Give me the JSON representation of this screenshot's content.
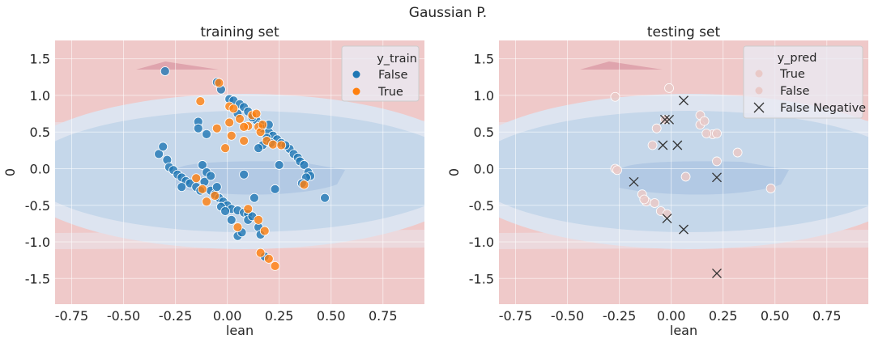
{
  "figure": {
    "suptitle": "Gaussian P."
  },
  "colors": {
    "axes_bg": "#eaeaf2",
    "class_false": "#1f77b4",
    "class_true": "#ff7f0e",
    "pred_point": "#e9c9c7",
    "false_negative": "#333333",
    "region_red_light": "#ecd9dd",
    "region_red": "#efc9c9",
    "region_blue_light": "#dde4f0",
    "region_blue": "#c5d7ea",
    "region_blue_dark": "#b2c9e4",
    "region_red_dark": "#dfa4ad",
    "grid": "#ffffff"
  },
  "chart_data": [
    {
      "type": "scatter",
      "title": "training set",
      "xlabel": "lean",
      "ylabel": "0",
      "xlim": [
        -0.83,
        0.95
      ],
      "ylim": [
        -1.85,
        1.75
      ],
      "xticks": [
        "-0.75",
        "-0.50",
        "-0.25",
        "0.00",
        "0.25",
        "0.50",
        "0.75"
      ],
      "yticks": [
        "-1.5",
        "-1.0",
        "-0.5",
        "0.0",
        "0.5",
        "1.0",
        "1.5"
      ],
      "grid": true,
      "background": "decision-regions",
      "legend": {
        "title": "y_train",
        "placement": "top-right",
        "entries": [
          {
            "label": "False",
            "marker": "circle",
            "color": "#1f77b4"
          },
          {
            "label": "True",
            "marker": "circle",
            "color": "#ff7f0e"
          }
        ]
      },
      "series": [
        {
          "name": "False",
          "color": "#1f77b4",
          "marker": "circle",
          "points": [
            [
              -0.3,
              1.33
            ],
            [
              -0.05,
              1.18
            ],
            [
              -0.03,
              1.08
            ],
            [
              0.01,
              0.95
            ],
            [
              0.03,
              0.93
            ],
            [
              0.06,
              0.88
            ],
            [
              0.08,
              0.84
            ],
            [
              0.1,
              0.78
            ],
            [
              0.12,
              0.72
            ],
            [
              0.14,
              0.66
            ],
            [
              0.16,
              0.6
            ],
            [
              0.17,
              0.55
            ],
            [
              0.2,
              0.5
            ],
            [
              0.22,
              0.45
            ],
            [
              0.24,
              0.4
            ],
            [
              0.26,
              0.35
            ],
            [
              0.19,
              0.42
            ],
            [
              0.17,
              0.32
            ],
            [
              0.15,
              0.28
            ],
            [
              0.21,
              0.35
            ],
            [
              0.3,
              0.27
            ],
            [
              0.32,
              0.2
            ],
            [
              0.34,
              0.15
            ],
            [
              0.35,
              0.1
            ],
            [
              0.37,
              0.05
            ],
            [
              0.39,
              -0.05
            ],
            [
              0.4,
              -0.1
            ],
            [
              0.38,
              -0.12
            ],
            [
              0.36,
              -0.2
            ],
            [
              0.47,
              -0.4
            ],
            [
              0.25,
              0.05
            ],
            [
              0.23,
              -0.28
            ],
            [
              0.08,
              -0.08
            ],
            [
              -0.33,
              0.2
            ],
            [
              -0.31,
              0.3
            ],
            [
              -0.29,
              0.12
            ],
            [
              -0.28,
              0.02
            ],
            [
              -0.26,
              -0.02
            ],
            [
              -0.24,
              -0.08
            ],
            [
              -0.22,
              -0.12
            ],
            [
              -0.2,
              -0.17
            ],
            [
              -0.18,
              -0.2
            ],
            [
              -0.15,
              -0.25
            ],
            [
              -0.13,
              -0.3
            ],
            [
              -0.11,
              -0.18
            ],
            [
              -0.22,
              -0.25
            ],
            [
              -0.12,
              0.05
            ],
            [
              -0.1,
              -0.05
            ],
            [
              -0.08,
              -0.1
            ],
            [
              -0.14,
              0.64
            ],
            [
              -0.14,
              0.55
            ],
            [
              -0.1,
              0.47
            ],
            [
              -0.08,
              -0.3
            ],
            [
              -0.06,
              -0.35
            ],
            [
              -0.04,
              -0.4
            ],
            [
              -0.02,
              -0.45
            ],
            [
              0.0,
              -0.5
            ],
            [
              -0.03,
              -0.52
            ],
            [
              0.02,
              -0.55
            ],
            [
              0.05,
              -0.57
            ],
            [
              0.08,
              -0.6
            ],
            [
              0.1,
              -0.62
            ],
            [
              -0.01,
              -0.58
            ],
            [
              -0.05,
              -0.25
            ],
            [
              0.02,
              -0.7
            ],
            [
              0.05,
              -0.92
            ],
            [
              0.07,
              -0.87
            ],
            [
              0.1,
              -0.7
            ],
            [
              0.12,
              -0.65
            ],
            [
              0.15,
              -0.8
            ],
            [
              0.16,
              -0.9
            ],
            [
              0.18,
              -1.2
            ],
            [
              0.13,
              -0.4
            ],
            [
              0.2,
              0.6
            ],
            [
              0.05,
              0.75
            ],
            [
              0.12,
              0.7
            ],
            [
              0.28,
              0.32
            ]
          ]
        },
        {
          "name": "True",
          "color": "#ff7f0e",
          "marker": "circle",
          "points": [
            [
              -0.13,
              0.92
            ],
            [
              -0.04,
              1.17
            ],
            [
              0.01,
              0.85
            ],
            [
              0.03,
              0.82
            ],
            [
              0.12,
              0.73
            ],
            [
              0.06,
              0.68
            ],
            [
              0.1,
              0.58
            ],
            [
              0.08,
              0.57
            ],
            [
              0.15,
              0.57
            ],
            [
              -0.05,
              0.55
            ],
            [
              0.01,
              0.63
            ],
            [
              0.16,
              0.5
            ],
            [
              -0.01,
              0.28
            ],
            [
              0.19,
              0.38
            ],
            [
              0.22,
              0.33
            ],
            [
              0.26,
              0.32
            ],
            [
              0.37,
              -0.22
            ],
            [
              -0.15,
              -0.13
            ],
            [
              -0.12,
              -0.28
            ],
            [
              -0.1,
              -0.45
            ],
            [
              -0.06,
              -0.37
            ],
            [
              0.1,
              -0.55
            ],
            [
              0.15,
              -0.7
            ],
            [
              0.2,
              -1.23
            ],
            [
              0.23,
              -1.33
            ],
            [
              0.16,
              -1.15
            ],
            [
              0.08,
              0.38
            ],
            [
              0.02,
              0.45
            ],
            [
              0.14,
              0.75
            ],
            [
              0.17,
              0.6
            ],
            [
              0.18,
              -0.85
            ],
            [
              0.05,
              -0.8
            ]
          ]
        }
      ]
    },
    {
      "type": "scatter",
      "title": "testing set",
      "xlabel": "lean",
      "ylabel": "0",
      "xlim": [
        -0.83,
        0.95
      ],
      "ylim": [
        -1.85,
        1.75
      ],
      "xticks": [
        "-0.75",
        "-0.50",
        "-0.25",
        "0.00",
        "0.25",
        "0.50",
        "0.75"
      ],
      "yticks": [
        "-1.5",
        "-1.0",
        "-0.5",
        "0.0",
        "0.5",
        "1.0",
        "1.5"
      ],
      "grid": true,
      "background": "decision-regions",
      "legend": {
        "title": "y_pred",
        "placement": "top-right",
        "entries": [
          {
            "label": "True",
            "marker": "circle",
            "color": "#e9c9c7"
          },
          {
            "label": "False",
            "marker": "circle",
            "color": "#e9c9c7"
          },
          {
            "label": "False Negative",
            "marker": "x",
            "color": "#333333"
          }
        ]
      },
      "series": [
        {
          "name": "True",
          "color": "#e9c9c7",
          "marker": "circle",
          "points": [
            [
              -0.27,
              0.98
            ],
            [
              -0.01,
              1.1
            ],
            [
              0.14,
              0.73
            ],
            [
              0.14,
              0.6
            ],
            [
              0.16,
              0.65
            ],
            [
              0.2,
              0.47
            ],
            [
              0.22,
              0.48
            ],
            [
              0.17,
              0.48
            ],
            [
              -0.03,
              0.67
            ],
            [
              -0.07,
              0.55
            ],
            [
              0.32,
              0.22
            ],
            [
              0.22,
              0.1
            ],
            [
              0.48,
              -0.27
            ],
            [
              -0.27,
              0.0
            ],
            [
              -0.26,
              -0.02
            ],
            [
              -0.14,
              -0.35
            ],
            [
              -0.12,
              -0.45
            ]
          ]
        },
        {
          "name": "False",
          "color": "#e9c9c7",
          "marker": "circle",
          "points": [
            [
              -0.09,
              0.32
            ],
            [
              0.07,
              -0.11
            ],
            [
              -0.08,
              -0.47
            ],
            [
              -0.05,
              -0.58
            ],
            [
              -0.02,
              -0.62
            ],
            [
              -0.13,
              -0.42
            ]
          ]
        },
        {
          "name": "False Negative",
          "color": "#333333",
          "marker": "x",
          "points": [
            [
              0.06,
              0.93
            ],
            [
              -0.03,
              0.67
            ],
            [
              -0.01,
              0.67
            ],
            [
              -0.04,
              0.32
            ],
            [
              0.03,
              0.32
            ],
            [
              -0.18,
              -0.18
            ],
            [
              0.22,
              -0.12
            ],
            [
              -0.02,
              -0.68
            ],
            [
              0.06,
              -0.83
            ],
            [
              0.22,
              -1.43
            ]
          ]
        }
      ]
    }
  ]
}
